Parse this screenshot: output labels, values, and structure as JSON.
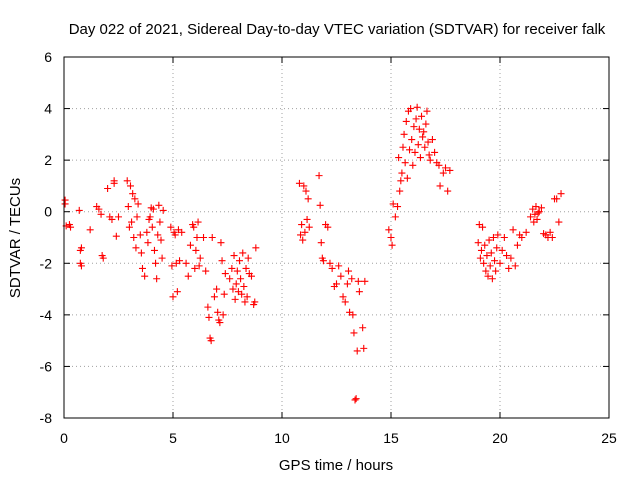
{
  "chart_data": {
    "type": "scatter",
    "title": "Day 022 of 2021, Sidereal Day-to-day VTEC variation (SDTVAR) for receiver falk",
    "xlabel": "GPS time / hours",
    "ylabel": "SDTVAR / TECUs",
    "xlim": [
      0,
      25
    ],
    "ylim": [
      -8,
      6
    ],
    "xticks": [
      0,
      5,
      10,
      15,
      20,
      25
    ],
    "yticks": [
      -8,
      -6,
      -4,
      -2,
      0,
      2,
      4,
      6
    ],
    "xtick_labels": [
      "0",
      "5",
      "10",
      "15",
      "20",
      "25"
    ],
    "ytick_labels": [
      "-8",
      "-6",
      "-4",
      "-2",
      "0",
      "2",
      "4",
      "6"
    ],
    "grid": true,
    "marker": "+",
    "color": "#ff0000",
    "series": [
      {
        "name": "SDTVAR",
        "points": [
          [
            0.05,
            0.45
          ],
          [
            0.05,
            0.3
          ],
          [
            0.1,
            -0.55
          ],
          [
            0.25,
            -0.5
          ],
          [
            0.3,
            -0.6
          ],
          [
            0.7,
            0.05
          ],
          [
            0.75,
            -1.5
          ],
          [
            0.75,
            -2.0
          ],
          [
            0.8,
            -2.1
          ],
          [
            0.8,
            -1.4
          ],
          [
            1.2,
            -0.7
          ],
          [
            1.5,
            0.2
          ],
          [
            1.6,
            0.1
          ],
          [
            1.7,
            -0.1
          ],
          [
            1.75,
            -1.7
          ],
          [
            1.8,
            -1.8
          ],
          [
            2.0,
            0.9
          ],
          [
            2.1,
            -0.2
          ],
          [
            2.2,
            -0.3
          ],
          [
            2.3,
            1.1
          ],
          [
            2.3,
            1.2
          ],
          [
            2.4,
            -0.95
          ],
          [
            2.5,
            -0.2
          ],
          [
            2.9,
            1.2
          ],
          [
            2.95,
            0.2
          ],
          [
            3.0,
            -0.6
          ],
          [
            3.05,
            1.0
          ],
          [
            3.1,
            -0.4
          ],
          [
            3.15,
            0.7
          ],
          [
            3.2,
            -1.0
          ],
          [
            3.25,
            0.5
          ],
          [
            3.3,
            -1.4
          ],
          [
            3.35,
            -0.2
          ],
          [
            3.4,
            0.3
          ],
          [
            3.5,
            -0.9
          ],
          [
            3.55,
            -1.6
          ],
          [
            3.6,
            -2.2
          ],
          [
            3.7,
            -2.5
          ],
          [
            3.8,
            -0.8
          ],
          [
            3.85,
            -1.2
          ],
          [
            3.9,
            -0.3
          ],
          [
            3.95,
            -0.2
          ],
          [
            4.0,
            0.15
          ],
          [
            4.05,
            -0.6
          ],
          [
            4.1,
            0.1
          ],
          [
            4.15,
            -1.5
          ],
          [
            4.2,
            -2.0
          ],
          [
            4.25,
            -2.6
          ],
          [
            4.3,
            -0.9
          ],
          [
            4.35,
            0.25
          ],
          [
            4.4,
            -0.4
          ],
          [
            4.45,
            -1.1
          ],
          [
            4.5,
            -1.8
          ],
          [
            4.55,
            0.05
          ],
          [
            4.9,
            -0.6
          ],
          [
            4.95,
            -2.1
          ],
          [
            5.0,
            -3.3
          ],
          [
            5.05,
            -0.8
          ],
          [
            5.1,
            -0.9
          ],
          [
            5.15,
            -2.0
          ],
          [
            5.2,
            -3.1
          ],
          [
            5.25,
            -0.7
          ],
          [
            5.3,
            -1.9
          ],
          [
            5.4,
            -0.8
          ],
          [
            5.6,
            -2.0
          ],
          [
            5.7,
            -2.5
          ],
          [
            5.8,
            -1.3
          ],
          [
            5.9,
            -0.5
          ],
          [
            5.95,
            -0.6
          ],
          [
            6.0,
            -2.2
          ],
          [
            6.05,
            -1.5
          ],
          [
            6.1,
            -1.0
          ],
          [
            6.15,
            -0.4
          ],
          [
            6.2,
            -2.1
          ],
          [
            6.25,
            -1.8
          ],
          [
            6.4,
            -1.0
          ],
          [
            6.5,
            -2.3
          ],
          [
            6.6,
            -3.7
          ],
          [
            6.65,
            -4.1
          ],
          [
            6.7,
            -4.9
          ],
          [
            6.75,
            -5.0
          ],
          [
            6.8,
            -1.0
          ],
          [
            6.9,
            -3.3
          ],
          [
            7.0,
            -3.0
          ],
          [
            7.05,
            -3.9
          ],
          [
            7.1,
            -4.2
          ],
          [
            7.15,
            -4.3
          ],
          [
            7.2,
            -1.2
          ],
          [
            7.25,
            -1.9
          ],
          [
            7.3,
            -4.0
          ],
          [
            7.35,
            -3.2
          ],
          [
            7.4,
            -2.4
          ],
          [
            7.6,
            -2.6
          ],
          [
            7.7,
            -2.2
          ],
          [
            7.75,
            -3.0
          ],
          [
            7.8,
            -1.7
          ],
          [
            7.85,
            -3.4
          ],
          [
            7.9,
            -2.8
          ],
          [
            7.95,
            -2.3
          ],
          [
            8.0,
            -3.1
          ],
          [
            8.05,
            -1.9
          ],
          [
            8.1,
            -2.6
          ],
          [
            8.15,
            -3.2
          ],
          [
            8.2,
            -1.6
          ],
          [
            8.25,
            -2.9
          ],
          [
            8.3,
            -3.5
          ],
          [
            8.35,
            -2.2
          ],
          [
            8.4,
            -3.3
          ],
          [
            8.45,
            -1.8
          ],
          [
            8.5,
            -2.4
          ],
          [
            8.6,
            -2.5
          ],
          [
            8.7,
            -3.6
          ],
          [
            8.75,
            -3.5
          ],
          [
            8.8,
            -1.4
          ],
          [
            10.8,
            1.1
          ],
          [
            10.85,
            -0.9
          ],
          [
            10.9,
            -0.5
          ],
          [
            10.95,
            -1.1
          ],
          [
            11.0,
            1.0
          ],
          [
            11.05,
            -0.8
          ],
          [
            11.1,
            0.8
          ],
          [
            11.15,
            -0.3
          ],
          [
            11.2,
            0.5
          ],
          [
            11.25,
            -0.6
          ],
          [
            11.7,
            1.4
          ],
          [
            11.75,
            0.25
          ],
          [
            11.8,
            -1.2
          ],
          [
            11.85,
            -1.8
          ],
          [
            11.9,
            -1.9
          ],
          [
            12.0,
            -0.5
          ],
          [
            12.1,
            -0.6
          ],
          [
            12.2,
            -2.0
          ],
          [
            12.3,
            -2.2
          ],
          [
            12.4,
            -2.9
          ],
          [
            12.5,
            -2.8
          ],
          [
            12.6,
            -2.1
          ],
          [
            12.7,
            -2.5
          ],
          [
            12.8,
            -3.3
          ],
          [
            12.9,
            -3.5
          ],
          [
            13.0,
            -2.8
          ],
          [
            13.05,
            -2.3
          ],
          [
            13.1,
            -3.9
          ],
          [
            13.2,
            -2.6
          ],
          [
            13.25,
            -4.0
          ],
          [
            13.3,
            -4.7
          ],
          [
            13.35,
            -7.3
          ],
          [
            13.4,
            -7.25
          ],
          [
            13.45,
            -5.4
          ],
          [
            13.5,
            -2.7
          ],
          [
            13.55,
            -3.1
          ],
          [
            13.7,
            -4.5
          ],
          [
            13.75,
            -5.3
          ],
          [
            13.8,
            -2.7
          ],
          [
            14.9,
            -0.7
          ],
          [
            15.0,
            -1.0
          ],
          [
            15.05,
            -1.3
          ],
          [
            15.1,
            0.3
          ],
          [
            15.2,
            -0.2
          ],
          [
            15.3,
            0.2
          ],
          [
            15.35,
            2.1
          ],
          [
            15.4,
            0.8
          ],
          [
            15.45,
            1.2
          ],
          [
            15.5,
            1.5
          ],
          [
            15.55,
            2.5
          ],
          [
            15.6,
            3.0
          ],
          [
            15.65,
            1.9
          ],
          [
            15.7,
            3.5
          ],
          [
            15.75,
            1.3
          ],
          [
            15.8,
            3.9
          ],
          [
            15.85,
            2.4
          ],
          [
            15.9,
            4.0
          ],
          [
            15.95,
            2.8
          ],
          [
            16.0,
            1.8
          ],
          [
            16.05,
            3.3
          ],
          [
            16.1,
            2.3
          ],
          [
            16.15,
            3.6
          ],
          [
            16.2,
            4.05
          ],
          [
            16.25,
            2.6
          ],
          [
            16.3,
            3.2
          ],
          [
            16.35,
            2.1
          ],
          [
            16.4,
            3.7
          ],
          [
            16.45,
            2.9
          ],
          [
            16.5,
            3.1
          ],
          [
            16.55,
            2.5
          ],
          [
            16.6,
            3.4
          ],
          [
            16.65,
            3.9
          ],
          [
            16.7,
            2.7
          ],
          [
            16.75,
            2.2
          ],
          [
            16.8,
            2.0
          ],
          [
            16.9,
            2.8
          ],
          [
            17.0,
            2.3
          ],
          [
            17.1,
            1.9
          ],
          [
            17.2,
            1.8
          ],
          [
            17.25,
            1.0
          ],
          [
            17.4,
            1.5
          ],
          [
            17.5,
            1.7
          ],
          [
            17.6,
            0.8
          ],
          [
            17.7,
            1.6
          ],
          [
            19.0,
            -1.2
          ],
          [
            19.05,
            -0.5
          ],
          [
            19.1,
            -1.8
          ],
          [
            19.15,
            -1.5
          ],
          [
            19.2,
            -0.6
          ],
          [
            19.25,
            -2.0
          ],
          [
            19.3,
            -1.3
          ],
          [
            19.35,
            -2.3
          ],
          [
            19.4,
            -1.7
          ],
          [
            19.45,
            -2.5
          ],
          [
            19.5,
            -1.1
          ],
          [
            19.55,
            -2.1
          ],
          [
            19.6,
            -1.6
          ],
          [
            19.65,
            -2.6
          ],
          [
            19.7,
            -1.0
          ],
          [
            19.75,
            -1.9
          ],
          [
            19.8,
            -2.3
          ],
          [
            19.85,
            -1.4
          ],
          [
            19.9,
            -0.9
          ],
          [
            20.0,
            -2.0
          ],
          [
            20.1,
            -1.5
          ],
          [
            20.2,
            -1.0
          ],
          [
            20.3,
            -1.7
          ],
          [
            20.4,
            -2.2
          ],
          [
            20.5,
            -1.8
          ],
          [
            20.6,
            -0.7
          ],
          [
            20.7,
            -2.1
          ],
          [
            20.8,
            -1.3
          ],
          [
            20.9,
            -0.9
          ],
          [
            21.0,
            -1.0
          ],
          [
            21.2,
            -0.8
          ],
          [
            21.4,
            -0.2
          ],
          [
            21.5,
            0.1
          ],
          [
            21.55,
            -0.4
          ],
          [
            21.6,
            -0.1
          ],
          [
            21.65,
            0.2
          ],
          [
            21.7,
            -0.3
          ],
          [
            21.75,
            -0.05
          ],
          [
            21.8,
            0.0
          ],
          [
            21.9,
            0.15
          ],
          [
            22.0,
            -0.85
          ],
          [
            22.1,
            -0.9
          ],
          [
            22.2,
            -1.0
          ],
          [
            22.3,
            -0.8
          ],
          [
            22.4,
            -1.0
          ],
          [
            22.5,
            0.5
          ],
          [
            22.6,
            0.5
          ],
          [
            22.7,
            -0.4
          ],
          [
            22.8,
            0.7
          ]
        ]
      }
    ]
  }
}
